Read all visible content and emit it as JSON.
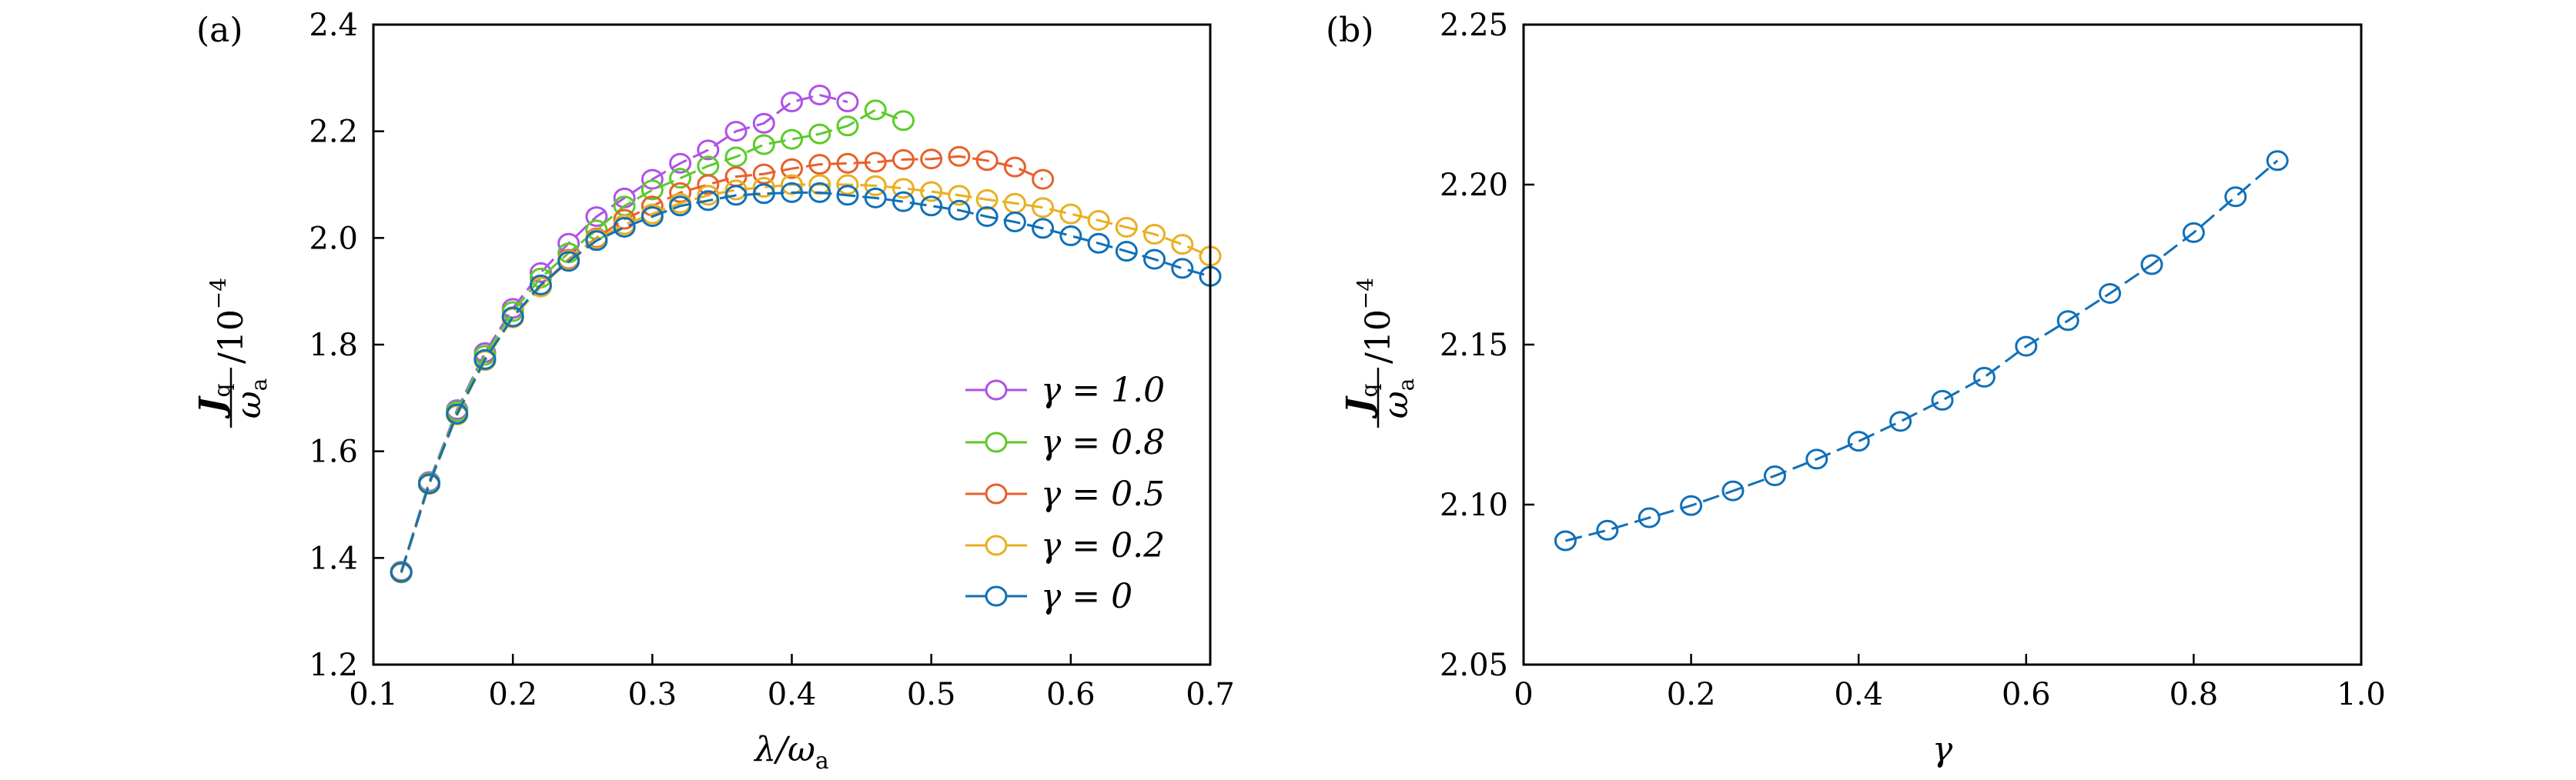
{
  "chart_data": [
    {
      "panel_label": "(a)",
      "type": "line",
      "xlabel": {
        "main": "λ/ω",
        "sub": "a"
      },
      "ylabel": {
        "numerator": "J",
        "numerator_sub": "q",
        "denominator": "ω",
        "denominator_sub": "a",
        "suffix": "/10",
        "suffix_sup": "−4"
      },
      "xlim": [
        0.1,
        0.7
      ],
      "ylim": [
        1.2,
        2.4
      ],
      "xticks": [
        "0.1",
        "0.2",
        "0.3",
        "0.4",
        "0.5",
        "0.6",
        "0.7"
      ],
      "yticks": [
        "1.2",
        "1.4",
        "1.6",
        "1.8",
        "2.0",
        "2.2",
        "2.4"
      ],
      "grid": false,
      "legend_position": "bottom-right",
      "marker": "open-circle",
      "series": [
        {
          "name": "γ = 1.0",
          "color": "#b052e6",
          "x": [
            0.12,
            0.14,
            0.16,
            0.18,
            0.2,
            0.22,
            0.24,
            0.26,
            0.28,
            0.3,
            0.32,
            0.34,
            0.36,
            0.38,
            0.4,
            0.42,
            0.44
          ],
          "y": [
            1.375,
            1.543,
            1.678,
            1.785,
            1.868,
            1.935,
            1.99,
            2.04,
            2.075,
            2.11,
            2.14,
            2.165,
            2.2,
            2.215,
            2.255,
            2.268,
            2.255
          ]
        },
        {
          "name": "γ = 0.8",
          "color": "#5ccb2a",
          "x": [
            0.12,
            0.14,
            0.16,
            0.18,
            0.2,
            0.22,
            0.24,
            0.26,
            0.28,
            0.3,
            0.32,
            0.34,
            0.36,
            0.38,
            0.4,
            0.42,
            0.44,
            0.46,
            0.48
          ],
          "y": [
            1.374,
            1.541,
            1.675,
            1.78,
            1.862,
            1.925,
            1.972,
            2.015,
            2.06,
            2.09,
            2.112,
            2.135,
            2.152,
            2.175,
            2.185,
            2.195,
            2.21,
            2.24,
            2.22
          ]
        },
        {
          "name": "γ = 0.5",
          "color": "#e8602c",
          "x": [
            0.12,
            0.14,
            0.16,
            0.18,
            0.2,
            0.22,
            0.24,
            0.26,
            0.28,
            0.3,
            0.32,
            0.34,
            0.36,
            0.38,
            0.4,
            0.42,
            0.44,
            0.46,
            0.48,
            0.5,
            0.52,
            0.54,
            0.56,
            0.58
          ],
          "y": [
            1.372,
            1.538,
            1.67,
            1.772,
            1.852,
            1.91,
            1.96,
            2.0,
            2.035,
            2.06,
            2.085,
            2.1,
            2.115,
            2.12,
            2.13,
            2.138,
            2.14,
            2.142,
            2.147,
            2.148,
            2.153,
            2.145,
            2.133,
            2.11
          ]
        },
        {
          "name": "γ = 0.2",
          "color": "#e8b020",
          "x": [
            0.12,
            0.14,
            0.16,
            0.18,
            0.2,
            0.22,
            0.24,
            0.26,
            0.28,
            0.3,
            0.32,
            0.34,
            0.36,
            0.38,
            0.4,
            0.42,
            0.44,
            0.46,
            0.48,
            0.5,
            0.52,
            0.54,
            0.56,
            0.58,
            0.6,
            0.62,
            0.64,
            0.66,
            0.68,
            0.7
          ],
          "y": [
            1.372,
            1.538,
            1.668,
            1.77,
            1.85,
            1.908,
            1.958,
            1.998,
            2.025,
            2.045,
            2.065,
            2.08,
            2.09,
            2.095,
            2.1,
            2.1,
            2.1,
            2.098,
            2.093,
            2.087,
            2.08,
            2.072,
            2.065,
            2.057,
            2.045,
            2.033,
            2.02,
            2.007,
            1.988,
            1.966
          ]
        },
        {
          "name": "γ = 0",
          "color": "#1070b8",
          "x": [
            0.12,
            0.14,
            0.16,
            0.18,
            0.2,
            0.22,
            0.24,
            0.26,
            0.28,
            0.3,
            0.32,
            0.34,
            0.36,
            0.38,
            0.4,
            0.42,
            0.44,
            0.46,
            0.48,
            0.5,
            0.52,
            0.54,
            0.56,
            0.58,
            0.6,
            0.62,
            0.64,
            0.66,
            0.68,
            0.7
          ],
          "y": [
            1.373,
            1.539,
            1.67,
            1.772,
            1.852,
            1.912,
            1.956,
            1.995,
            2.02,
            2.04,
            2.06,
            2.07,
            2.08,
            2.083,
            2.085,
            2.085,
            2.08,
            2.075,
            2.068,
            2.06,
            2.052,
            2.04,
            2.03,
            2.018,
            2.004,
            1.99,
            1.975,
            1.96,
            1.943,
            1.928
          ]
        }
      ]
    },
    {
      "panel_label": "(b)",
      "type": "line",
      "xlabel": {
        "main": "γ",
        "sub": ""
      },
      "ylabel": {
        "numerator": "J",
        "numerator_sub": "q",
        "denominator": "ω",
        "denominator_sub": "a",
        "suffix": "/10",
        "suffix_sup": "−4"
      },
      "xlim": [
        0,
        1.0
      ],
      "ylim": [
        2.05,
        2.25
      ],
      "xticks": [
        "0",
        "0.2",
        "0.4",
        "0.6",
        "0.8",
        "1.0"
      ],
      "yticks": [
        "2.05",
        "2.10",
        "2.15",
        "2.20",
        "2.25"
      ],
      "grid": false,
      "marker": "open-circle",
      "series": [
        {
          "color": "#1070b8",
          "x": [
            0.05,
            0.1,
            0.15,
            0.2,
            0.25,
            0.3,
            0.35,
            0.4,
            0.45,
            0.5,
            0.55,
            0.6,
            0.65,
            0.7,
            0.75,
            0.8,
            0.85,
            0.9
          ],
          "y": [
            2.0887,
            2.092,
            2.0959,
            2.0997,
            2.1043,
            2.109,
            2.1142,
            2.1198,
            2.126,
            2.1326,
            2.1398,
            2.1495,
            2.1575,
            2.166,
            2.175,
            2.185,
            2.1962,
            2.2075
          ]
        }
      ]
    }
  ]
}
